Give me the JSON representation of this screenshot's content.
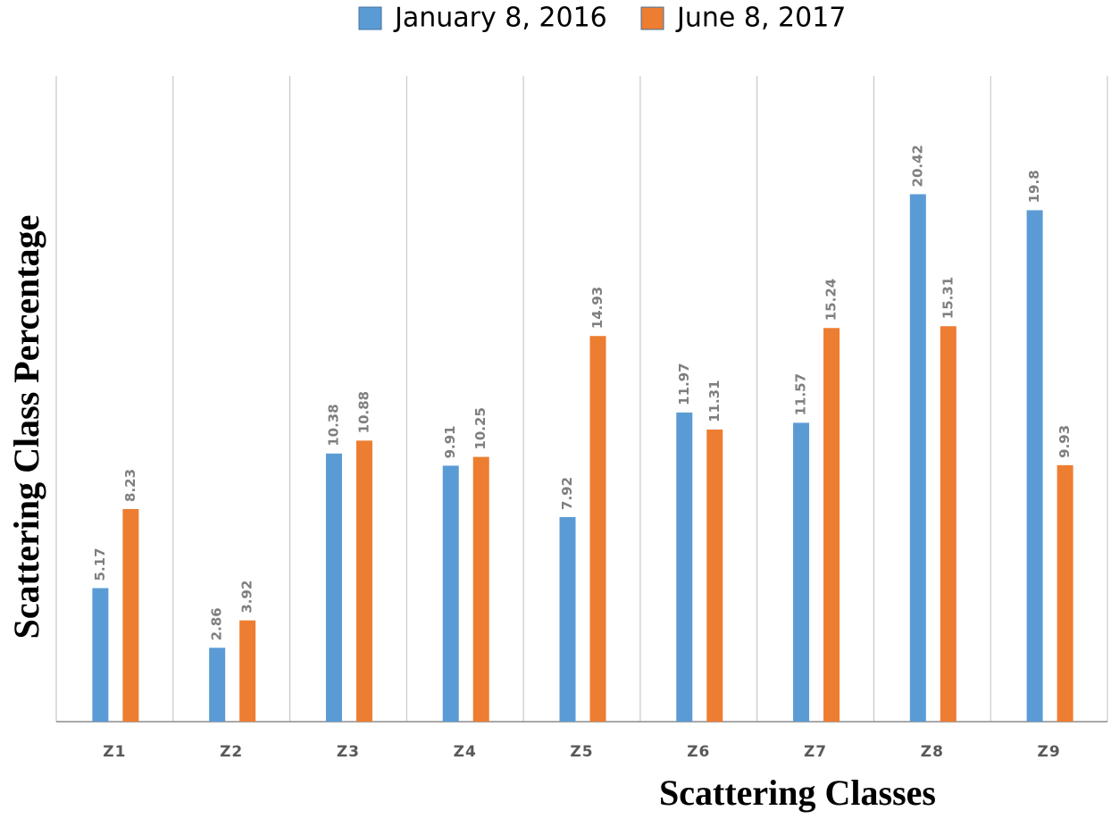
{
  "chart_data": {
    "type": "bar",
    "x_label": "Scattering Classes",
    "y_label": "Scattering Class Percentage",
    "categories": [
      "Z1",
      "Z2",
      "Z3",
      "Z4",
      "Z5",
      "Z6",
      "Z7",
      "Z8",
      "Z9"
    ],
    "series": [
      {
        "name": "January 8, 2016",
        "color": "#5b9bd5",
        "values": [
          5.17,
          2.86,
          10.38,
          9.91,
          7.92,
          11.97,
          11.57,
          20.42,
          19.8
        ]
      },
      {
        "name": "June 8, 2017",
        "color": "#ed7d31",
        "values": [
          8.23,
          3.92,
          10.88,
          10.25,
          14.93,
          11.31,
          15.24,
          15.31,
          9.93
        ]
      }
    ],
    "ylim": [
      0,
      25
    ],
    "legend": "top"
  }
}
